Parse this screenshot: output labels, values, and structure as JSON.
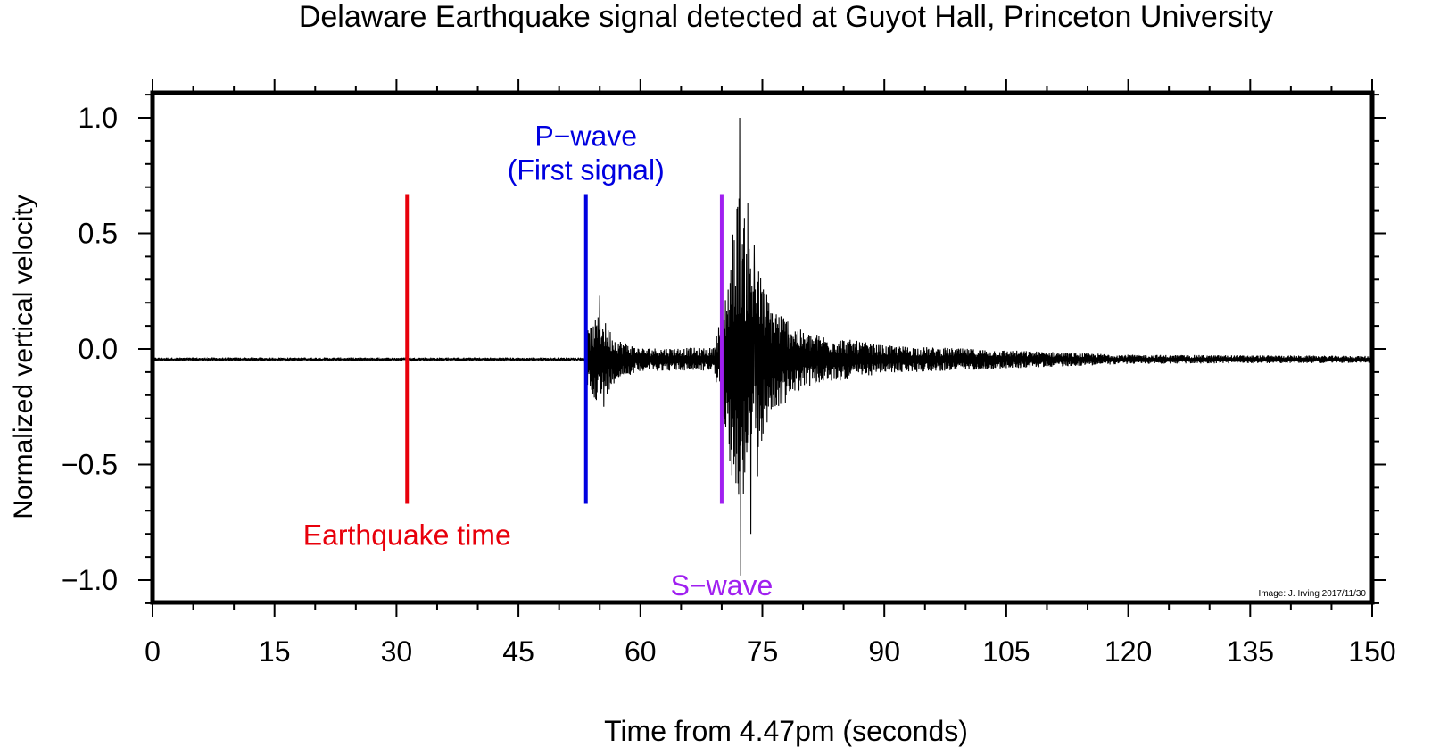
{
  "chart_data": {
    "type": "line",
    "title": "Delaware Earthquake signal detected at Guyot Hall, Princeton University",
    "xlabel": "Time from 4.47pm (seconds)",
    "ylabel": "Normalized vertical velocity",
    "xlim": [
      0,
      150
    ],
    "ylim": [
      -1.1,
      1.1
    ],
    "x_ticks": [
      0,
      15,
      30,
      45,
      60,
      75,
      90,
      105,
      120,
      135,
      150
    ],
    "x_tick_labels": [
      "0",
      "15",
      "30",
      "45",
      "60",
      "75",
      "90",
      "105",
      "120",
      "135",
      "150"
    ],
    "y_ticks": [
      1.0,
      0.5,
      0.0,
      -0.5,
      -1.0
    ],
    "y_tick_labels": [
      "1.0",
      "0.5",
      "0.0",
      "−0.5",
      "−1.0"
    ],
    "grid": false,
    "series": [
      {
        "color": "#000000",
        "baseline": -0.045,
        "envelope": [
          {
            "t": 0,
            "a": 0.008
          },
          {
            "t": 53.1,
            "a": 0.008
          },
          {
            "t": 53.4,
            "a": 0.12
          },
          {
            "t": 55,
            "a": 0.2
          },
          {
            "t": 57,
            "a": 0.09
          },
          {
            "t": 60,
            "a": 0.05
          },
          {
            "t": 69,
            "a": 0.05
          },
          {
            "t": 70.5,
            "a": 0.3
          },
          {
            "t": 72,
            "a": 0.75
          },
          {
            "t": 73.5,
            "a": 0.5
          },
          {
            "t": 76,
            "a": 0.25
          },
          {
            "t": 80,
            "a": 0.12
          },
          {
            "t": 90,
            "a": 0.06
          },
          {
            "t": 105,
            "a": 0.04
          },
          {
            "t": 120,
            "a": 0.02
          },
          {
            "t": 150,
            "a": 0.015
          }
        ],
        "peaks": [
          {
            "t": 72.2,
            "y": 1.0
          },
          {
            "t": 72.35,
            "y": -0.98
          },
          {
            "t": 73.2,
            "y": 0.63
          },
          {
            "t": 73.6,
            "y": -0.8
          },
          {
            "t": 74.0,
            "y": 0.45
          },
          {
            "t": 74.4,
            "y": -0.55
          },
          {
            "t": 55.0,
            "y": 0.23
          },
          {
            "t": 55.5,
            "y": -0.25
          }
        ]
      }
    ],
    "markers": [
      {
        "t": 31.3,
        "y_top": 0.67,
        "y_bottom": -0.67,
        "color": "#e8000b",
        "lines": [
          "Earthquake time"
        ],
        "label_pos": "below"
      },
      {
        "t": 53.3,
        "y_top": 0.67,
        "y_bottom": -0.67,
        "color": "#0000e0",
        "lines": [
          "P−wave",
          "(First signal)"
        ],
        "label_pos": "above"
      },
      {
        "t": 70.0,
        "y_top": 0.67,
        "y_bottom": -0.67,
        "color": "#a020f0",
        "lines": [
          "S−wave"
        ],
        "label_pos": "bottom"
      }
    ],
    "credit": "Image: J. Irving 2017/11/30"
  }
}
